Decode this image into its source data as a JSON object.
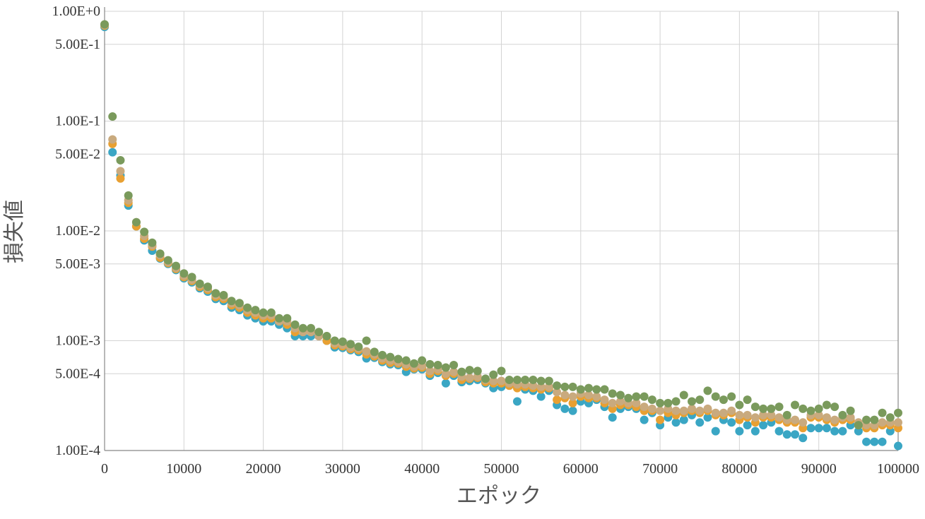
{
  "chart_data": {
    "type": "scatter",
    "title": "",
    "xlabel": "エポック",
    "ylabel": "損失値",
    "xlim": [
      0,
      100000
    ],
    "ylim": [
      0.0001,
      1.0
    ],
    "yscale": "log",
    "grid": true,
    "legend": "none",
    "x_ticks": [
      "0",
      "10000",
      "20000",
      "30000",
      "40000",
      "50000",
      "60000",
      "70000",
      "80000",
      "90000",
      "100000"
    ],
    "y_ticks": [
      {
        "value": 1.0,
        "label": "1.00E+0"
      },
      {
        "value": 0.5,
        "label": "5.00E-1"
      },
      {
        "value": 0.1,
        "label": "1.00E-1"
      },
      {
        "value": 0.05,
        "label": "5.00E-2"
      },
      {
        "value": 0.01,
        "label": "1.00E-2"
      },
      {
        "value": 0.005,
        "label": "5.00E-3"
      },
      {
        "value": 0.001,
        "label": "1.00E-3"
      },
      {
        "value": 0.0005,
        "label": "5.00E-4"
      },
      {
        "value": 0.0001,
        "label": "1.00E-4"
      }
    ],
    "series": [
      {
        "color": "#3aa6c4",
        "y": [
          0.72,
          0.052,
          0.032,
          0.017,
          0.011,
          0.0082,
          0.0066,
          0.0056,
          0.005,
          0.0044,
          0.0037,
          0.0034,
          0.003,
          0.0028,
          0.0024,
          0.0023,
          0.002,
          0.0019,
          0.0017,
          0.0016,
          0.0015,
          0.0015,
          0.0014,
          0.0013,
          0.0011,
          0.0011,
          0.0011,
          0.0011,
          0.001,
          0.00087,
          0.00086,
          0.00082,
          0.00079,
          0.00069,
          0.0007,
          0.00064,
          0.00061,
          0.0006,
          0.00052,
          0.00055,
          0.00055,
          0.00048,
          0.00051,
          0.00041,
          0.00048,
          0.00042,
          0.00043,
          0.00044,
          0.00041,
          0.00037,
          0.00038,
          0.00039,
          0.00028,
          0.00036,
          0.00035,
          0.00031,
          0.00035,
          0.00026,
          0.00024,
          0.00023,
          0.00028,
          0.00027,
          0.00029,
          0.00025,
          0.0002,
          0.00024,
          0.00025,
          0.00024,
          0.00019,
          0.00022,
          0.00017,
          0.0002,
          0.00018,
          0.00019,
          0.00021,
          0.00018,
          0.0002,
          0.00015,
          0.00019,
          0.00018,
          0.00015,
          0.00017,
          0.00015,
          0.00017,
          0.00018,
          0.00015,
          0.00014,
          0.00014,
          0.00013,
          0.00016,
          0.00016,
          0.00016,
          0.00015,
          0.00015,
          0.00017,
          0.00015,
          0.00012,
          0.00012,
          0.00012,
          0.00015,
          0.00011
        ]
      },
      {
        "color": "#e8a032",
        "y": [
          0.74,
          0.062,
          0.03,
          0.018,
          0.011,
          0.0085,
          0.0072,
          0.0057,
          0.0051,
          0.0045,
          0.0038,
          0.0035,
          0.0031,
          0.0029,
          0.0025,
          0.0024,
          0.0021,
          0.002,
          0.0018,
          0.0017,
          0.0016,
          0.0016,
          0.0015,
          0.0014,
          0.0012,
          0.0012,
          0.0012,
          0.0011,
          0.001,
          0.00091,
          0.00089,
          0.00084,
          0.00082,
          0.00075,
          0.00072,
          0.00066,
          0.00063,
          0.00062,
          0.00058,
          0.00056,
          0.00057,
          0.0005,
          0.00053,
          0.00048,
          0.0005,
          0.00044,
          0.00045,
          0.00046,
          0.00042,
          0.00041,
          0.00041,
          0.00039,
          0.00037,
          0.00038,
          0.00037,
          0.00036,
          0.00037,
          0.00029,
          0.0003,
          0.00027,
          0.00031,
          0.0003,
          0.0003,
          0.00027,
          0.00024,
          0.00026,
          0.00026,
          0.00025,
          0.00023,
          0.00023,
          0.00019,
          0.00022,
          0.00021,
          0.00022,
          0.00023,
          0.00022,
          0.00023,
          0.00021,
          0.00021,
          0.00022,
          0.00019,
          0.0002,
          0.00018,
          0.0002,
          0.0002,
          0.00019,
          0.00018,
          0.00018,
          0.00016,
          0.0002,
          0.0002,
          0.00019,
          0.00018,
          0.00019,
          0.00019,
          0.00017,
          0.00016,
          0.00016,
          0.00017,
          0.00017,
          0.00016
        ]
      },
      {
        "color": "#c9aa7e",
        "y": [
          0.75,
          0.068,
          0.035,
          0.019,
          0.012,
          0.009,
          0.0074,
          0.006,
          0.0052,
          0.0046,
          0.0039,
          0.0036,
          0.0032,
          0.003,
          0.0026,
          0.0025,
          0.0022,
          0.0021,
          0.0019,
          0.0018,
          0.0017,
          0.0017,
          0.0015,
          0.0015,
          0.0013,
          0.0012,
          0.0012,
          0.0011,
          0.0011,
          0.00095,
          0.00092,
          0.00087,
          0.00085,
          0.0008,
          0.00075,
          0.00069,
          0.00066,
          0.00064,
          0.00061,
          0.00058,
          0.00059,
          0.00053,
          0.00055,
          0.0005,
          0.00052,
          0.00047,
          0.00046,
          0.00047,
          0.00044,
          0.00043,
          0.00043,
          0.00041,
          0.0004,
          0.0004,
          0.00039,
          0.00038,
          0.00038,
          0.00034,
          0.00032,
          0.00031,
          0.00033,
          0.00032,
          0.00031,
          0.00029,
          0.00027,
          0.00028,
          0.00027,
          0.00027,
          0.00025,
          0.00024,
          0.00023,
          0.00024,
          0.00023,
          0.00023,
          0.00024,
          0.00023,
          0.00024,
          0.00022,
          0.00022,
          0.00023,
          0.00021,
          0.00021,
          0.0002,
          0.00021,
          0.00021,
          0.0002,
          0.00019,
          0.00019,
          0.00018,
          0.00021,
          0.00021,
          0.0002,
          0.00019,
          0.0002,
          0.0002,
          0.00018,
          0.00017,
          0.00017,
          0.00018,
          0.00018,
          0.00018
        ]
      },
      {
        "color": "#7a9a5c",
        "y": [
          0.76,
          0.11,
          0.044,
          0.021,
          0.012,
          0.0098,
          0.0078,
          0.0062,
          0.0054,
          0.0048,
          0.0041,
          0.0038,
          0.0033,
          0.0031,
          0.0027,
          0.0026,
          0.0023,
          0.0022,
          0.002,
          0.0019,
          0.0018,
          0.0018,
          0.0016,
          0.0016,
          0.0014,
          0.0013,
          0.0013,
          0.0012,
          0.0011,
          0.001,
          0.00098,
          0.00093,
          0.00088,
          0.001,
          0.00079,
          0.00074,
          0.00071,
          0.00068,
          0.00066,
          0.00062,
          0.00066,
          0.00061,
          0.0006,
          0.00057,
          0.0006,
          0.00052,
          0.00054,
          0.00053,
          0.00045,
          0.00049,
          0.00053,
          0.00044,
          0.00044,
          0.00044,
          0.00044,
          0.00043,
          0.00043,
          0.00039,
          0.00038,
          0.00038,
          0.00036,
          0.00037,
          0.00036,
          0.00036,
          0.00033,
          0.00032,
          0.0003,
          0.00031,
          0.00031,
          0.00029,
          0.00027,
          0.00027,
          0.00028,
          0.00032,
          0.00028,
          0.00029,
          0.00035,
          0.00031,
          0.00029,
          0.00031,
          0.00026,
          0.00029,
          0.00025,
          0.00024,
          0.00024,
          0.00025,
          0.00021,
          0.00026,
          0.00024,
          0.00023,
          0.00024,
          0.00026,
          0.00025,
          0.00021,
          0.00023,
          0.00017,
          0.00019,
          0.00019,
          0.00022,
          0.0002,
          0.00022
        ]
      }
    ]
  }
}
